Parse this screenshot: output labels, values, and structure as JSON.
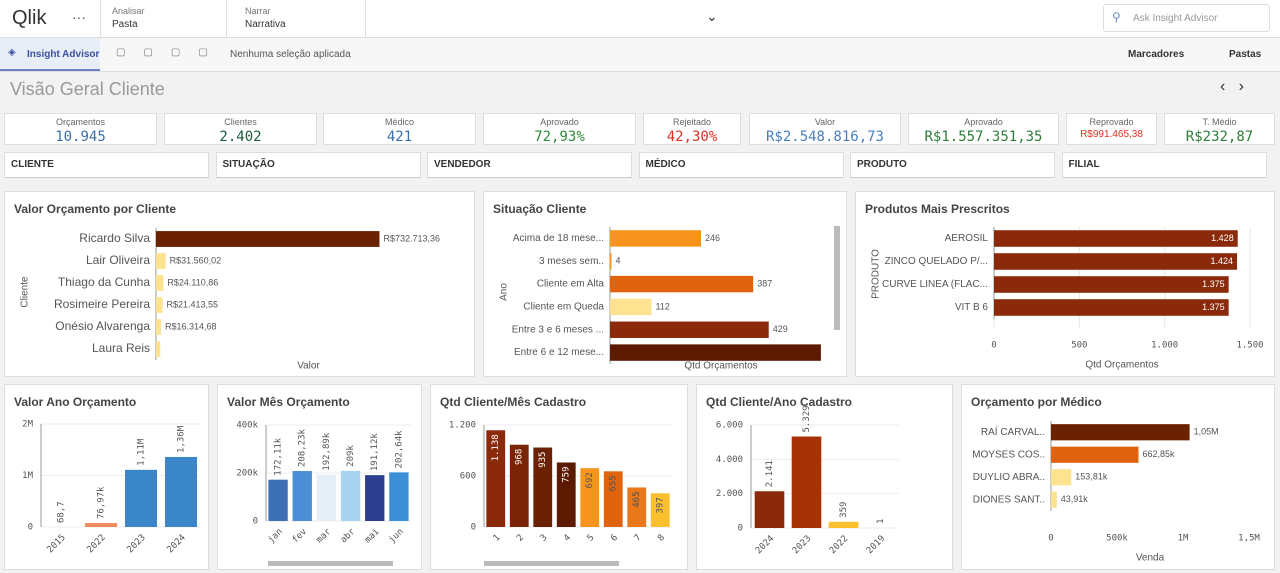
{
  "header": {
    "logo": "Qlik",
    "nav": [
      {
        "label": "Analisar",
        "value": "Pasta"
      },
      {
        "label": "Narrar",
        "value": "Narrativa"
      }
    ],
    "search": "Ask Insight Advisor"
  },
  "toolbar": {
    "insight": "Insight Advisor",
    "selection": "Nenhuma seleção aplicada",
    "bookmarks": "Marcadores",
    "sheets": "Pastas"
  },
  "sheet_title": "Visão Geral Cliente",
  "kpis": [
    {
      "label": "Orçamentos",
      "value": "10.945"
    },
    {
      "label": "Clientes",
      "value": "2.402"
    },
    {
      "label": "Médico",
      "value": "421"
    },
    {
      "label": "Aprovado",
      "value": "72,93%"
    },
    {
      "label": "Rejeitado",
      "value": "42,30%"
    },
    {
      "label": "Valor",
      "value": "R$2.548.816,73"
    },
    {
      "label": "Aprovado",
      "value": "R$1.557.351,35"
    },
    {
      "label": "Reprovado",
      "value": "R$991.465,38"
    },
    {
      "label": "T. Médio",
      "value": "R$232,87"
    }
  ],
  "filters": [
    "CLIENTE",
    "SITUAÇÃO",
    "VENDEDOR",
    "MÉDICO",
    "PRODUTO",
    "FILIAL"
  ],
  "chart_data": [
    {
      "type": "hbar",
      "title": "Valor Orçamento por Cliente",
      "xlabel": "Valor",
      "ylabel": "Cliente",
      "categories": [
        "Ricardo Silva",
        "Lair Oliveira",
        "Thiago da Cunha",
        "Rosimeire Pereira",
        "Onésio Alvarenga",
        "Laura Reis"
      ],
      "values": [
        732713.36,
        31560.02,
        24110.86,
        21413.55,
        16314.68,
        14000
      ],
      "value_labels": [
        "R$732.713,36",
        "R$31.560,02",
        "R$24.110,86",
        "R$21.413,55",
        "R$16.314,68",
        null
      ],
      "colors": [
        "#6b2203",
        "#fde28f",
        "#fde28f",
        "#fde28f",
        "#fde28f",
        "#fde28f"
      ],
      "xlim": [
        0,
        1000000
      ]
    },
    {
      "type": "hbar",
      "title": "Situação Cliente",
      "xlabel": "Qtd Orçamentos",
      "ylabel": "Ano",
      "categories": [
        "Acima de 18 mese...",
        "3 meses sem..",
        "Cliente em Alta",
        "Cliente em Queda",
        "Entre 3 e 6 meses ...",
        "Entre 6 e 12 mese..."
      ],
      "values": [
        246,
        4,
        387,
        112,
        429,
        570
      ],
      "value_labels": [
        "246",
        "4",
        "387",
        "112",
        "429",
        null
      ],
      "colors": [
        "#f7941d",
        "#f7941d",
        "#e0630d",
        "#fde28f",
        "#8b2a0a",
        "#5c1a03"
      ],
      "xlim": [
        0,
        600
      ]
    },
    {
      "type": "hbar",
      "title": "Produtos Mais Prescritos",
      "xlabel": "Qtd Orçamentos",
      "ylabel": "PRODUTO",
      "categories": [
        "AEROSIL",
        "ZINCO QUELADO P/...",
        "CURVE LINEA (FLAC...",
        "VIT B 6"
      ],
      "values": [
        1428,
        1424,
        1375,
        1375
      ],
      "value_labels": [
        "1.428",
        "1.424",
        "1.375",
        "1.375"
      ],
      "colors": [
        "#8b2a0a",
        "#8b2a0a",
        "#8b2a0a",
        "#8b2a0a"
      ],
      "xlim": [
        0,
        1500
      ],
      "xticks": [
        0,
        500,
        {
          "value": 1000,
          "label": "1.000"
        },
        {
          "value": 1500,
          "label": "1.500"
        }
      ],
      "grid": true
    },
    {
      "type": "vbar",
      "title": "Valor Ano Orçamento",
      "categories": [
        "2015",
        "2022",
        "2023",
        "2024"
      ],
      "values": [
        68.7,
        76970,
        1110000,
        1360000
      ],
      "value_labels": [
        "68,7",
        "76,97k",
        "1,11M",
        "1,36M"
      ],
      "colors": [
        "#3a86c8",
        "#f28b60",
        "#3a86c8",
        "#3a86c8"
      ],
      "ylim": [
        0,
        2000000
      ],
      "yticks": [
        0,
        {
          "value": 1000000,
          "label": "1M"
        },
        {
          "value": 2000000,
          "label": "2M"
        }
      ]
    },
    {
      "type": "vbar",
      "title": "Valor Mês Orçamento",
      "categories": [
        "jan",
        "fev",
        "mar",
        "abr",
        "mai",
        "jun"
      ],
      "values": [
        172110,
        208230,
        192890,
        209000,
        191120,
        202640
      ],
      "value_labels": [
        "172,11k",
        "208,23k",
        "192,89k",
        "209k",
        "191,12k",
        "202,64k"
      ],
      "colors": [
        "#3d6fb6",
        "#4a8fd6",
        "#e6eef5",
        "#a8d4f2",
        "#2e3e8f",
        "#3a8fd6"
      ],
      "ylim": [
        0,
        400000
      ],
      "yticks": [
        0,
        {
          "value": 200000,
          "label": "200k"
        },
        {
          "value": 400000,
          "label": "400k"
        }
      ]
    },
    {
      "type": "vbar",
      "title": "Qtd Cliente/Mês Cadastro",
      "categories": [
        "1",
        "2",
        "3",
        "4",
        "5",
        "6",
        "7",
        "8"
      ],
      "values": [
        1138,
        968,
        935,
        759,
        692,
        655,
        465,
        397
      ],
      "value_labels": [
        "1.138",
        "968",
        "935",
        "759",
        "692",
        "655",
        "465",
        "397"
      ],
      "colors": [
        "#8b2a0a",
        "#7a2405",
        "#6b2203",
        "#5c1a03",
        "#f7941d",
        "#e0630d",
        "#e8781a",
        "#fbc02d"
      ],
      "ylim": [
        0,
        1200
      ],
      "yticks": [
        0,
        600,
        {
          "value": 1200,
          "label": "1.200"
        }
      ]
    },
    {
      "type": "vbar",
      "title": "Qtd Cliente/Ano Cadastro",
      "categories": [
        "2024",
        "2023",
        "2022",
        "2019"
      ],
      "values": [
        2141,
        5329,
        359,
        1
      ],
      "value_labels": [
        "2.141",
        "5.329",
        "359",
        "1"
      ],
      "colors": [
        "#8b2a0a",
        "#a83207",
        "#fbc02d",
        "#cccccc"
      ],
      "ylim": [
        0,
        6000
      ],
      "yticks": [
        0,
        {
          "value": 2000,
          "label": "2.000"
        },
        {
          "value": 4000,
          "label": "4.000"
        },
        {
          "value": 6000,
          "label": "6.000"
        }
      ]
    },
    {
      "type": "hbar",
      "title": "Orçamento por Médico",
      "xlabel": "Venda",
      "categories": [
        "RAÍ CARVAL..",
        "MOYSES COS..",
        "DUYLIO ABRA..",
        "DIONES SANT.."
      ],
      "values": [
        1050000,
        662850,
        153810,
        43910
      ],
      "value_labels": [
        "1,05M",
        "662,85k",
        "153,81k",
        "43,91k"
      ],
      "colors": [
        "#6b2203",
        "#e0630d",
        "#fde28f",
        "#fde28f"
      ],
      "xlim": [
        0,
        1500000
      ],
      "xticks": [
        0,
        {
          "value": 500000,
          "label": "500k"
        },
        {
          "value": 1000000,
          "label": "1M"
        },
        {
          "value": 1500000,
          "label": "1,5M"
        }
      ]
    }
  ]
}
